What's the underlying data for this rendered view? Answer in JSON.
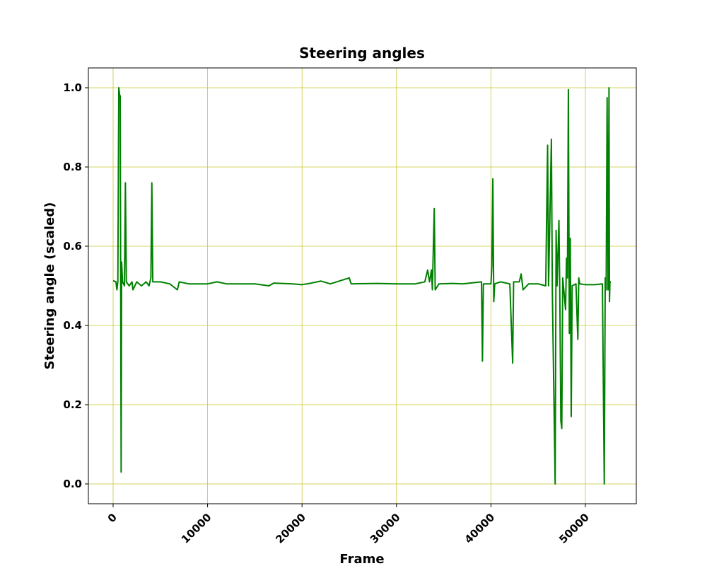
{
  "chart_data": {
    "type": "line",
    "title": "Steering angles",
    "x_label": "Frame",
    "y_label": "Steering angle (scaled)",
    "x": [
      0,
      300,
      400,
      500,
      600,
      700,
      750,
      850,
      900,
      1000,
      1200,
      1300,
      1400,
      1700,
      2000,
      2100,
      2500,
      3000,
      3500,
      3800,
      4000,
      4100,
      4200,
      5000,
      6000,
      6800,
      7000,
      8000,
      10000,
      11000,
      12000,
      13000,
      15000,
      16500,
      17000,
      19000,
      20000,
      21000,
      22000,
      23000,
      25000,
      25200,
      28000,
      30000,
      32000,
      33000,
      33300,
      33500,
      33700,
      33800,
      34000,
      34100,
      34500,
      36000,
      37000,
      39000,
      39100,
      39200,
      40000,
      40100,
      40200,
      40300,
      40400,
      41000,
      42000,
      42300,
      42400,
      43000,
      43200,
      43400,
      44000,
      45000,
      45800,
      46000,
      46100,
      46400,
      46500,
      46800,
      46900,
      47000,
      47200,
      47300,
      47400,
      47500,
      47600,
      47900,
      48000,
      48100,
      48200,
      48300,
      48400,
      48500,
      48600,
      49000,
      49200,
      49300,
      49400,
      50000,
      51000,
      51800,
      52000,
      52100,
      52200,
      52300,
      52400,
      52500,
      52550,
      52600,
      52700
    ],
    "series": [
      {
        "name": "Steering angle",
        "color": "#008000",
        "values": [
          0.513,
          0.51,
          0.49,
          0.51,
          1.0,
          0.98,
          0.98,
          0.03,
          0.56,
          0.51,
          0.5,
          0.76,
          0.51,
          0.5,
          0.51,
          0.49,
          0.51,
          0.5,
          0.51,
          0.5,
          0.52,
          0.76,
          0.51,
          0.51,
          0.505,
          0.49,
          0.51,
          0.505,
          0.505,
          0.51,
          0.505,
          0.505,
          0.505,
          0.5,
          0.507,
          0.505,
          0.503,
          0.507,
          0.512,
          0.505,
          0.52,
          0.505,
          0.506,
          0.505,
          0.505,
          0.51,
          0.54,
          0.51,
          0.54,
          0.49,
          0.695,
          0.49,
          0.505,
          0.506,
          0.505,
          0.51,
          0.31,
          0.505,
          0.505,
          0.55,
          0.77,
          0.46,
          0.505,
          0.51,
          0.505,
          0.305,
          0.51,
          0.51,
          0.53,
          0.49,
          0.505,
          0.505,
          0.5,
          0.855,
          0.5,
          0.87,
          0.49,
          0.0,
          0.64,
          0.5,
          0.665,
          0.46,
          0.16,
          0.14,
          0.52,
          0.44,
          0.57,
          0.52,
          0.995,
          0.38,
          0.62,
          0.17,
          0.5,
          0.505,
          0.365,
          0.52,
          0.505,
          0.503,
          0.503,
          0.505,
          0.0,
          0.52,
          0.49,
          0.975,
          0.49,
          1.0,
          0.46,
          0.51,
          0.51
        ]
      }
    ],
    "xlim": [
      -2620,
      55390
    ],
    "ylim": [
      -0.05,
      1.05
    ],
    "xticks": [
      0,
      10000,
      20000,
      30000,
      40000,
      50000
    ],
    "yticks": [
      {
        "value": 0,
        "label": "0.0"
      },
      0.2,
      0.4,
      0.6,
      0.8,
      {
        "value": 1,
        "label": "1.0"
      }
    ],
    "grid": true
  }
}
